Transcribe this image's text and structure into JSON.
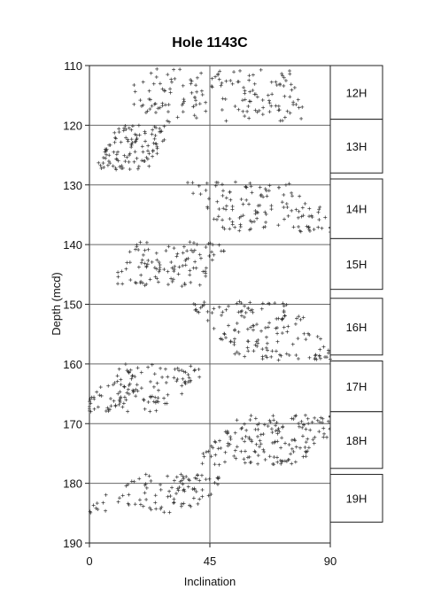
{
  "chart_data": {
    "type": "scatter",
    "title": "Hole 1143C",
    "xlabel": "Inclination",
    "ylabel": "Depth (mcd)",
    "xlim": [
      0,
      90
    ],
    "ylim": [
      190,
      110
    ],
    "y_reversed": true,
    "xticks": [
      "0",
      "45",
      "90"
    ],
    "yticks": [
      "110",
      "120",
      "130",
      "140",
      "150",
      "160",
      "170",
      "180",
      "190"
    ],
    "grid": "horizontal lines every 10 mcd, vertical line at 45",
    "marker": "+",
    "cores": [
      {
        "label": "12H",
        "top": 110,
        "bottom": 119
      },
      {
        "label": "13H",
        "top": 119,
        "bottom": 128
      },
      {
        "label": "14H",
        "top": 129,
        "bottom": 139
      },
      {
        "label": "15H",
        "top": 139,
        "bottom": 147.5
      },
      {
        "label": "16H",
        "top": 149,
        "bottom": 158.5
      },
      {
        "label": "17H",
        "top": 159.5,
        "bottom": 168
      },
      {
        "label": "18H",
        "top": 168,
        "bottom": 177.5
      },
      {
        "label": "19H",
        "top": 178.5,
        "bottom": 186.5
      }
    ],
    "clusters": [
      {
        "name": "12H-a",
        "depth": [
          110.5,
          119.5
        ],
        "inc": [
          15,
          45
        ],
        "n": 70,
        "tilt": 0
      },
      {
        "name": "12H-b",
        "depth": [
          110.5,
          119.5
        ],
        "inc": [
          45,
          80
        ],
        "n": 90,
        "tilt": 0.25
      },
      {
        "name": "13H",
        "depth": [
          120,
          127.5
        ],
        "inc": [
          5,
          28
        ],
        "n": 110,
        "tilt": -0.5
      },
      {
        "name": "14H",
        "depth": [
          129.5,
          138
        ],
        "inc": [
          40,
          89
        ],
        "n": 130,
        "tilt": 0.45
      },
      {
        "name": "15H",
        "depth": [
          139.5,
          147
        ],
        "inc": [
          10,
          50
        ],
        "n": 110,
        "tilt": -0.35
      },
      {
        "name": "16H",
        "depth": [
          149.5,
          159.5
        ],
        "inc": [
          44,
          87
        ],
        "n": 150,
        "tilt": 0.6
      },
      {
        "name": "17H",
        "depth": [
          160,
          168
        ],
        "inc": [
          2,
          40
        ],
        "n": 130,
        "tilt": -0.6
      },
      {
        "name": "18H",
        "depth": [
          168.5,
          177
        ],
        "inc": [
          45,
          90
        ],
        "n": 170,
        "tilt": -0.55
      },
      {
        "name": "19H",
        "depth": [
          178.5,
          185
        ],
        "inc": [
          4,
          48
        ],
        "n": 100,
        "tilt": -0.55
      }
    ]
  }
}
